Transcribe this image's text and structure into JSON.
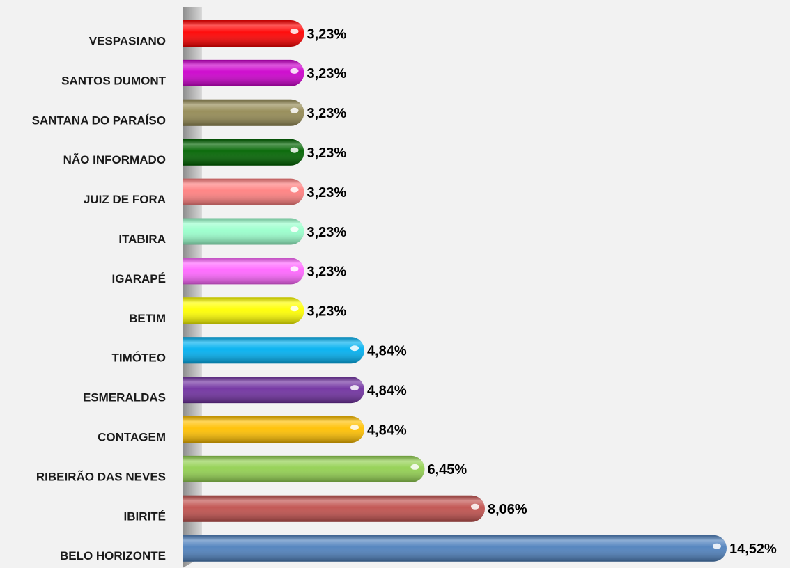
{
  "chart_data": {
    "type": "bar",
    "orientation": "horizontal",
    "categories": [
      "VESPASIANO",
      "SANTOS DUMONT",
      "SANTANA DO PARAÍSO",
      "NÃO INFORMADO",
      "JUIZ DE FORA",
      "ITABIRA",
      "IGARAPÉ",
      "BETIM",
      "TIMÓTEO",
      "ESMERALDAS",
      "CONTAGEM",
      "RIBEIRÃO DAS NEVES",
      "IBIRITÉ",
      "BELO HORIZONTE"
    ],
    "values": [
      3.23,
      3.23,
      3.23,
      3.23,
      3.23,
      3.23,
      3.23,
      3.23,
      4.84,
      4.84,
      4.84,
      6.45,
      8.06,
      14.52
    ],
    "value_labels": [
      "3,23%",
      "3,23%",
      "3,23%",
      "3,23%",
      "3,23%",
      "3,23%",
      "3,23%",
      "3,23%",
      "4,84%",
      "4,84%",
      "4,84%",
      "6,45%",
      "8,06%",
      "14,52%"
    ],
    "colors": [
      "#ff0000",
      "#cc00cc",
      "#948a54",
      "#006400",
      "#ff8080",
      "#99ffcc",
      "#ff66ff",
      "#ffff00",
      "#00b0f0",
      "#7030a0",
      "#ffc000",
      "#92d050",
      "#c0504d",
      "#4f81bd"
    ]
  }
}
